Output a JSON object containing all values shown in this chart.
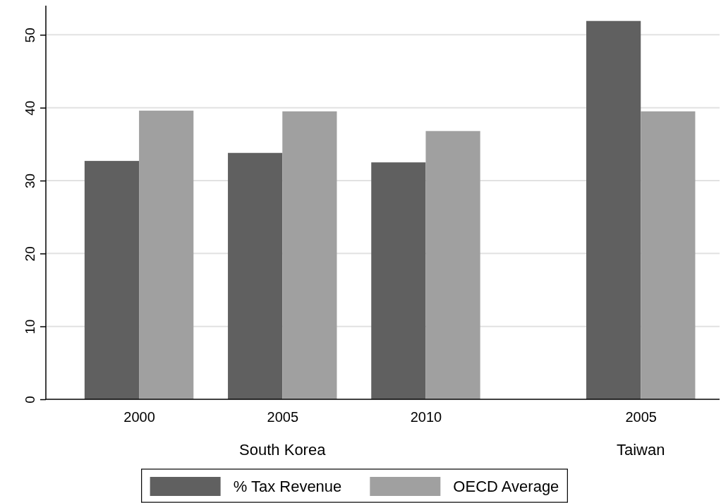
{
  "chart_data": {
    "type": "bar",
    "categories": [
      "2000",
      "2005",
      "2010",
      null,
      "2005"
    ],
    "series": [
      {
        "name": "% Tax Revenue",
        "color": "#606060",
        "values": [
          32.7,
          33.8,
          32.5,
          null,
          51.9
        ]
      },
      {
        "name": "OECD Average",
        "color": "#a0a0a0",
        "values": [
          39.6,
          39.5,
          36.8,
          null,
          39.5
        ]
      }
    ],
    "annotations": [
      "South Korea",
      "Taiwan"
    ],
    "ylim": [
      0,
      54
    ],
    "yticks": [
      0,
      10,
      20,
      30,
      40,
      50
    ],
    "grid": "y",
    "legend": "bottom"
  }
}
